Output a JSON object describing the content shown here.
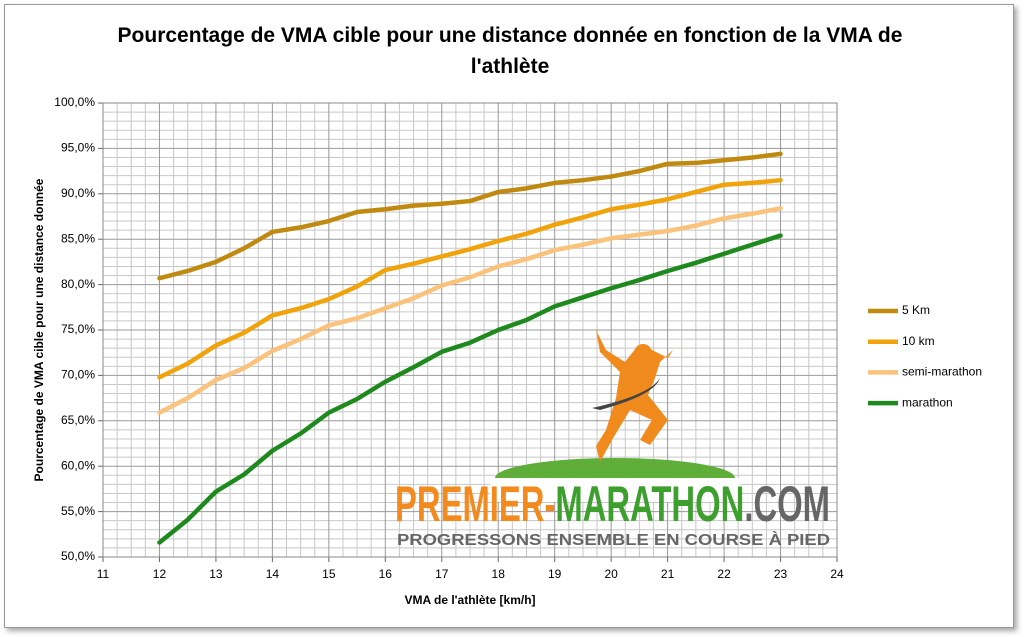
{
  "chart_data": {
    "type": "line",
    "title": "Pourcentage de VMA cible pour une distance donnée en fonction de la VMA de l'athlète",
    "x_label": "VMA de  l'athlète [km/h]",
    "y_label": "Pourcentage de VMA cible pour une distance donnée",
    "x": [
      12,
      12.5,
      13,
      13.5,
      14,
      14.5,
      15,
      15.5,
      16,
      16.5,
      17,
      17.5,
      18,
      18.5,
      19,
      19.5,
      20,
      20.5,
      21,
      21.5,
      22,
      22.5,
      23
    ],
    "series": [
      {
        "name": "5 Km",
        "color": "#bf8a0f",
        "values": [
          80.7,
          81.5,
          82.5,
          84,
          85.8,
          86.3,
          87,
          88,
          88.3,
          88.7,
          88.9,
          89.2,
          90.2,
          90.6,
          91.2,
          91.5,
          91.9,
          92.5,
          93.3,
          93.4,
          93.7,
          94,
          94.4
        ]
      },
      {
        "name": "10 km",
        "color": "#f0a30a",
        "values": [
          69.8,
          71.3,
          73.3,
          74.7,
          76.6,
          77.4,
          78.4,
          79.8,
          81.6,
          82.3,
          83.1,
          83.9,
          84.8,
          85.6,
          86.6,
          87.4,
          88.3,
          88.8,
          89.4,
          90.2,
          91,
          91.2,
          91.5
        ]
      },
      {
        "name": "semi-marathon",
        "color": "#fbc27c",
        "values": [
          65.9,
          67.5,
          69.5,
          70.8,
          72.7,
          74,
          75.5,
          76.3,
          77.4,
          78.5,
          79.9,
          80.8,
          82,
          82.8,
          83.8,
          84.4,
          85.1,
          85.5,
          85.9,
          86.5,
          87.3,
          87.8,
          88.4
        ]
      },
      {
        "name": "marathon",
        "color": "#1e8a1e",
        "values": [
          51.6,
          54.1,
          57.2,
          59.1,
          61.7,
          63.6,
          65.9,
          67.4,
          69.3,
          70.9,
          72.6,
          73.6,
          75,
          76.1,
          77.6,
          78.6,
          79.6,
          80.5,
          81.5,
          82.4,
          83.4,
          84.4,
          85.4
        ]
      }
    ],
    "xlim": [
      11,
      24
    ],
    "xticks": [
      11,
      12,
      13,
      14,
      15,
      16,
      17,
      18,
      19,
      20,
      21,
      22,
      23,
      24
    ],
    "ylim": [
      50,
      100
    ],
    "yticks": [
      {
        "value": 50,
        "label": "50,0%"
      },
      {
        "value": 55,
        "label": "55,0%"
      },
      {
        "value": 60,
        "label": "60,0%"
      },
      {
        "value": 65,
        "label": "65,0%"
      },
      {
        "value": 70,
        "label": "70,0%"
      },
      {
        "value": 75,
        "label": "75,0%"
      },
      {
        "value": 80,
        "label": "80,0%"
      },
      {
        "value": 85,
        "label": "85,0%"
      },
      {
        "value": 90,
        "label": "90,0%"
      },
      {
        "value": 95,
        "label": "95,0%"
      },
      {
        "value": 100,
        "label": "100,0%"
      }
    ],
    "grid": true,
    "legend": "right"
  },
  "logo": {
    "name": [
      "PREMIER-",
      "MARATHON",
      ".COM"
    ],
    "tagline": "PROGRESSONS ENSEMBLE EN COURSE À PIED"
  }
}
